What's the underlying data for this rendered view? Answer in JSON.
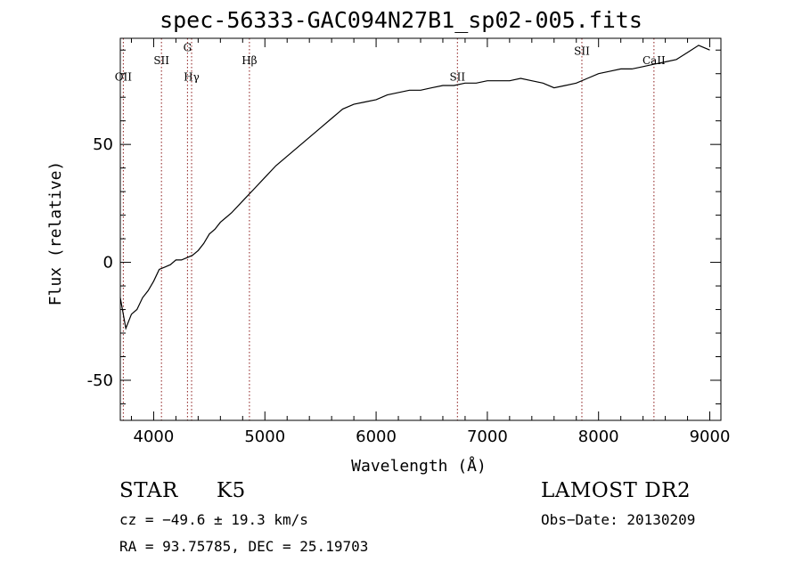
{
  "chart_data": {
    "type": "line",
    "title": "spec-56333-GAC094N27B1_sp02-005.fits",
    "xlabel": "Wavelength (Å)",
    "ylabel": "Flux (relative)",
    "xlim": [
      3700,
      9100
    ],
    "ylim": [
      -67,
      95
    ],
    "xticks": [
      "4000",
      "5000",
      "6000",
      "7000",
      "8000",
      "9000"
    ],
    "yticks": [
      "-50",
      "0",
      "50"
    ],
    "xtick_values": [
      4000,
      5000,
      6000,
      7000,
      8000,
      9000
    ],
    "ytick_values": [
      -50,
      0,
      50
    ],
    "grid": false,
    "series": [
      {
        "x": [
          3700,
          3750,
          3800,
          3850,
          3900,
          3950,
          4000,
          4050,
          4100,
          4150,
          4200,
          4250,
          4300,
          4350,
          4400,
          4450,
          4500,
          4550,
          4600,
          4700,
          4800,
          4900,
          5000,
          5100,
          5200,
          5300,
          5400,
          5500,
          5600,
          5700,
          5800,
          5900,
          6000,
          6100,
          6200,
          6300,
          6400,
          6500,
          6600,
          6700,
          6800,
          6900,
          7000,
          7100,
          7200,
          7300,
          7400,
          7500,
          7600,
          7700,
          7800,
          7900,
          8000,
          8100,
          8200,
          8300,
          8400,
          8500,
          8600,
          8700,
          8800,
          8900,
          9000
        ],
        "values": [
          -15,
          -28,
          -22,
          -20,
          -15,
          -12,
          -8,
          -3,
          -2,
          -1,
          1,
          1,
          2,
          3,
          5,
          8,
          12,
          14,
          17,
          21,
          26,
          31,
          36,
          41,
          45,
          49,
          53,
          57,
          61,
          65,
          67,
          68,
          69,
          71,
          72,
          73,
          73,
          74,
          75,
          75,
          76,
          76,
          77,
          77,
          77,
          78,
          77,
          76,
          74,
          75,
          76,
          78,
          80,
          81,
          82,
          82,
          83,
          84,
          85,
          86,
          89,
          92,
          90
        ],
        "line_color": "#000000"
      }
    ],
    "features": [
      {
        "label": "OII",
        "x": 3727,
        "label_y": 77
      },
      {
        "label": "SII",
        "x": 4070,
        "label_y": 84
      },
      {
        "label": "G",
        "x": 4304,
        "label_y": 89.5
      },
      {
        "label": "Hγ",
        "x": 4341,
        "label_y": 77
      },
      {
        "label": "Hβ",
        "x": 4861,
        "label_y": 84
      },
      {
        "label": "SII",
        "x": 6731,
        "label_y": 77
      },
      {
        "label": "SII",
        "x": 7850,
        "label_y": 88
      },
      {
        "label": "CaII",
        "x": 8498,
        "label_y": 84
      }
    ],
    "feature_line_color": "#8b1a1a"
  },
  "labels": {
    "object_class": "STAR",
    "subclass": "K5",
    "survey": "LAMOST DR2",
    "cz": "cz = −49.6 ± 19.3 km/s",
    "obs_date": "Obs−Date: 20130209",
    "coords": "RA =  93.75785, DEC =  25.19703"
  }
}
